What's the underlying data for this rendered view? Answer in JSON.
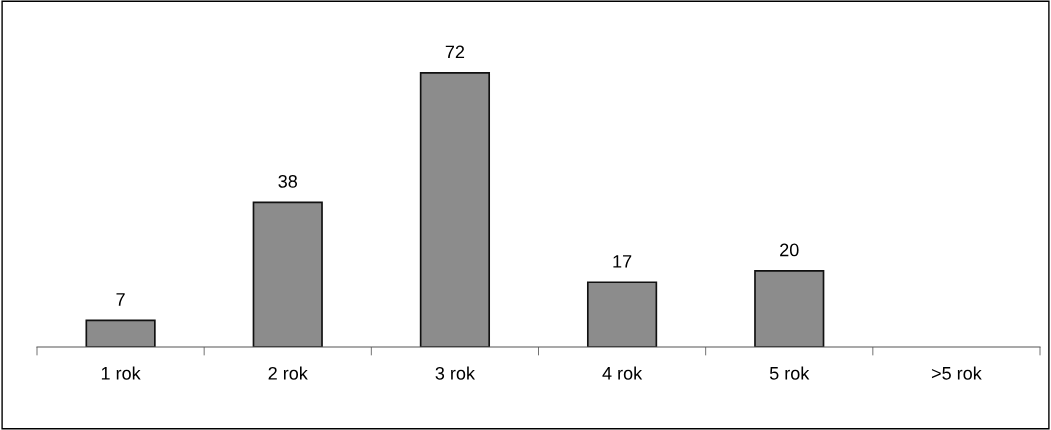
{
  "chart_data": {
    "type": "bar",
    "categories": [
      "1 rok",
      "2 rok",
      "3 rok",
      "4 rok",
      "5 rok",
      ">5 rok"
    ],
    "values": [
      7,
      38,
      72,
      17,
      20,
      null
    ],
    "value_labels": [
      "7",
      "38",
      "72",
      "17",
      "20",
      null
    ],
    "color": "#8c8c8c",
    "grid": false,
    "legend": false
  }
}
